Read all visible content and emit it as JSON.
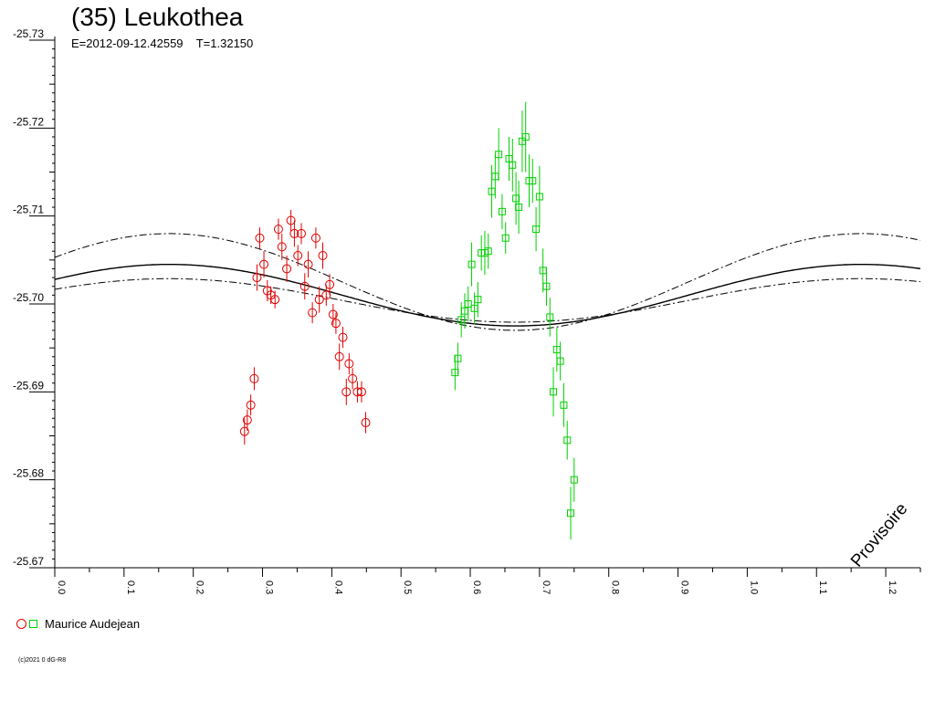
{
  "title": "(35) Leukothea",
  "subtitle": "E=2012-09-12.42559    T=1.32150",
  "legend_label": "Maurice Audejean",
  "copyright": "(c)2021 0 dG-R8",
  "watermark": "Provisoire",
  "chart_data": {
    "type": "scatter",
    "title": "(35) Leukothea",
    "subtitle": "E=2012-09-12.42559    T=1.32150",
    "xlim": [
      0.0,
      1.25
    ],
    "ylim": [
      -25.73,
      -25.67
    ],
    "y_inverted": false,
    "x_ticks": [
      "0.0",
      "0.1",
      "0.2",
      "0.3",
      "0.4",
      "0.5",
      "0.6",
      "0.7",
      "0.8",
      "0.9",
      "1.0",
      "1.1",
      "1.2"
    ],
    "y_ticks": [
      "-25.73",
      "-25.72",
      "-25.71",
      "-25.70",
      "-25.69",
      "-25.68",
      "-25.67"
    ],
    "model_curve": {
      "mean": -25.701,
      "amplitude": 0.0035,
      "phase_of_max": 0.165,
      "period": 1.0
    },
    "envelope_curve": {
      "mean": -25.701,
      "amplitude": 0.0055,
      "phase_of_max": 0.165,
      "period": 1.0,
      "offset": 0.0015
    },
    "series": [
      {
        "name": "Maurice Audejean",
        "marker": "circle",
        "color": "#e00000",
        "points": [
          [
            0.274,
            -25.6855,
            0.0015
          ],
          [
            0.278,
            -25.6868,
            0.0012
          ],
          [
            0.283,
            -25.6885,
            0.0012
          ],
          [
            0.288,
            -25.6915,
            0.0013
          ],
          [
            0.292,
            -25.703,
            0.0015
          ],
          [
            0.296,
            -25.7075,
            0.0012
          ],
          [
            0.302,
            -25.7045,
            0.0015
          ],
          [
            0.307,
            -25.7015,
            0.0012
          ],
          [
            0.312,
            -25.701,
            0.001
          ],
          [
            0.318,
            -25.7005,
            0.001
          ],
          [
            0.323,
            -25.7085,
            0.0012
          ],
          [
            0.328,
            -25.7065,
            0.0015
          ],
          [
            0.335,
            -25.704,
            0.0015
          ],
          [
            0.341,
            -25.7095,
            0.0012
          ],
          [
            0.346,
            -25.708,
            0.0015
          ],
          [
            0.351,
            -25.7055,
            0.0012
          ],
          [
            0.356,
            -25.708,
            0.0012
          ],
          [
            0.361,
            -25.702,
            0.0015
          ],
          [
            0.366,
            -25.7045,
            0.0015
          ],
          [
            0.372,
            -25.699,
            0.0012
          ],
          [
            0.377,
            -25.7075,
            0.0012
          ],
          [
            0.382,
            -25.7005,
            0.0015
          ],
          [
            0.387,
            -25.7055,
            0.0015
          ],
          [
            0.392,
            -25.701,
            0.0012
          ],
          [
            0.397,
            -25.7022,
            0.0012
          ],
          [
            0.402,
            -25.6988,
            0.0012
          ],
          [
            0.406,
            -25.6978,
            0.0012
          ],
          [
            0.411,
            -25.694,
            0.0015
          ],
          [
            0.416,
            -25.6962,
            0.0012
          ],
          [
            0.421,
            -25.69,
            0.0015
          ],
          [
            0.425,
            -25.6932,
            0.0012
          ],
          [
            0.43,
            -25.6915,
            0.0012
          ],
          [
            0.437,
            -25.69,
            0.0012
          ],
          [
            0.443,
            -25.69,
            0.0012
          ],
          [
            0.449,
            -25.6865,
            0.0012
          ]
        ]
      },
      {
        "name": "Maurice Audejean",
        "marker": "square",
        "color": "#00d000",
        "points": [
          [
            0.578,
            -25.6922,
            0.002
          ],
          [
            0.582,
            -25.6938,
            0.0018
          ],
          [
            0.587,
            -25.6982,
            0.002
          ],
          [
            0.592,
            -25.6992,
            0.002
          ],
          [
            0.597,
            -25.7,
            0.002
          ],
          [
            0.602,
            -25.7045,
            0.0025
          ],
          [
            0.606,
            -25.6995,
            0.0018
          ],
          [
            0.611,
            -25.7005,
            0.002
          ],
          [
            0.616,
            -25.7058,
            0.002
          ],
          [
            0.621,
            -25.7058,
            0.0025
          ],
          [
            0.626,
            -25.706,
            0.002
          ],
          [
            0.631,
            -25.7128,
            0.003
          ],
          [
            0.636,
            -25.7145,
            0.0025
          ],
          [
            0.641,
            -25.717,
            0.003
          ],
          [
            0.646,
            -25.7105,
            0.002
          ],
          [
            0.651,
            -25.7075,
            0.0018
          ],
          [
            0.656,
            -25.7165,
            0.0025
          ],
          [
            0.661,
            -25.7158,
            0.003
          ],
          [
            0.666,
            -25.712,
            0.003
          ],
          [
            0.67,
            -25.711,
            0.003
          ],
          [
            0.675,
            -25.7185,
            0.0035
          ],
          [
            0.68,
            -25.719,
            0.004
          ],
          [
            0.685,
            -25.714,
            0.003
          ],
          [
            0.69,
            -25.714,
            0.0025
          ],
          [
            0.695,
            -25.7085,
            0.0025
          ],
          [
            0.7,
            -25.7122,
            0.0035
          ],
          [
            0.705,
            -25.7038,
            0.0025
          ],
          [
            0.71,
            -25.702,
            0.0022
          ],
          [
            0.715,
            -25.6985,
            0.0022
          ],
          [
            0.72,
            -25.69,
            0.0028
          ],
          [
            0.725,
            -25.6948,
            0.0025
          ],
          [
            0.73,
            -25.6935,
            0.0022
          ],
          [
            0.735,
            -25.6885,
            0.0025
          ],
          [
            0.74,
            -25.6845,
            0.0022
          ],
          [
            0.745,
            -25.6762,
            0.003
          ],
          [
            0.75,
            -25.68,
            0.0025
          ]
        ]
      }
    ]
  }
}
